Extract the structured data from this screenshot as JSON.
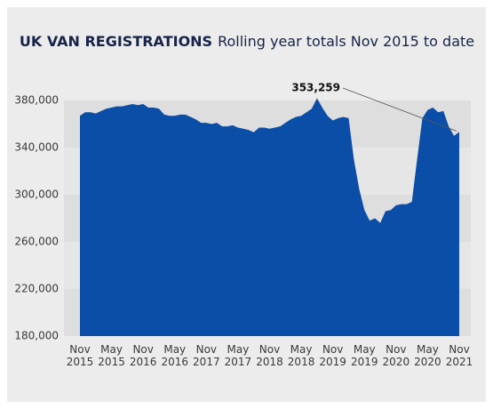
{
  "chart_data": {
    "type": "area",
    "title": "UK VAN REGISTRATIONS",
    "subtitle": "Rolling year totals Nov 2015 to date",
    "categories": [
      "Nov 2015",
      null,
      null,
      null,
      null,
      null,
      "May 2015",
      null,
      null,
      null,
      null,
      null,
      "Nov 2016",
      null,
      null,
      null,
      null,
      null,
      "May 2016",
      null,
      null,
      null,
      null,
      null,
      "Nov 2017",
      null,
      null,
      null,
      null,
      null,
      "May 2017",
      null,
      null,
      null,
      null,
      null,
      "Nov 2018",
      null,
      null,
      null,
      null,
      null,
      "May 2018",
      null,
      null,
      null,
      null,
      null,
      "Nov 2019",
      null,
      null,
      null,
      null,
      null,
      "May 2019",
      null,
      null,
      null,
      null,
      null,
      "Nov 2020",
      null,
      null,
      null,
      null,
      null,
      "May 2020",
      null,
      null,
      null,
      null,
      null,
      "Nov 2021"
    ],
    "values": [
      367000,
      370000,
      370000,
      369000,
      371000,
      373000,
      374000,
      375000,
      375000,
      376000,
      377000,
      376000,
      377000,
      374000,
      374000,
      373000,
      368000,
      367000,
      367000,
      368000,
      368000,
      366000,
      364000,
      361000,
      361000,
      360000,
      361000,
      358000,
      358000,
      359000,
      357000,
      356000,
      355000,
      353000,
      357000,
      357000,
      356000,
      357000,
      358000,
      361000,
      364000,
      366000,
      367000,
      370000,
      373000,
      382000,
      374000,
      367000,
      363000,
      365000,
      366000,
      365000,
      330000,
      305000,
      287000,
      278000,
      280000,
      276000,
      286000,
      287000,
      291000,
      292000,
      292000,
      294000,
      330000,
      365000,
      372000,
      374000,
      370000,
      371000,
      358000,
      350000,
      353259
    ],
    "annotation": "353,259",
    "color": "#0b4ea8",
    "ylim": [
      180000,
      390000
    ],
    "yticks": [
      {
        "value": 180000,
        "label": "180,000"
      },
      {
        "value": 220000,
        "label": "220,000"
      },
      {
        "value": 260000,
        "label": "260,000"
      },
      {
        "value": 300000,
        "label": "300,000"
      },
      {
        "value": 340000,
        "label": "340,000"
      },
      {
        "value": 380000,
        "label": "380,000"
      }
    ],
    "grid": true
  }
}
